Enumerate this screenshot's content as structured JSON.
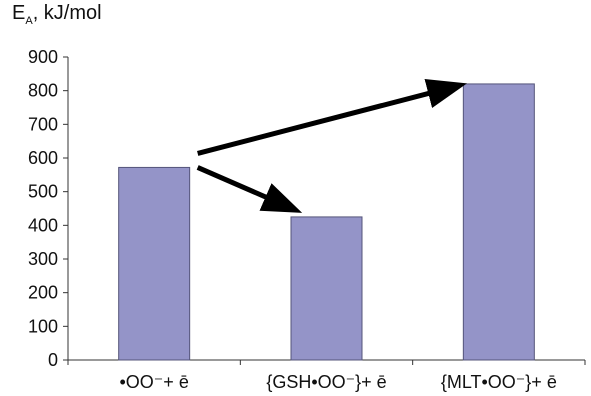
{
  "chart_data": {
    "type": "bar",
    "ylabel": {
      "symbol": "E",
      "subscript": "A",
      "unit": ", kJ/mol"
    },
    "xlabel": "",
    "title": "",
    "categories": [
      "•OO⁻+ ē",
      "{GSH•OO⁻}+ ē",
      "{MLT•OO⁻}+ ē"
    ],
    "values": [
      572,
      425,
      820
    ],
    "ylim": [
      0,
      900
    ],
    "yticks": [
      0,
      100,
      200,
      300,
      400,
      500,
      600,
      700,
      800,
      900
    ],
    "grid": false,
    "legend": "none",
    "bar_color": "#9494c8",
    "bar_edge_color": "#55557a",
    "annotations": [
      {
        "type": "arrow",
        "from_category": 0,
        "to_category": 1,
        "direction": "down",
        "color": "#000000"
      },
      {
        "type": "arrow",
        "from_category": 0,
        "to_category": 2,
        "direction": "up",
        "color": "#000000"
      }
    ]
  }
}
